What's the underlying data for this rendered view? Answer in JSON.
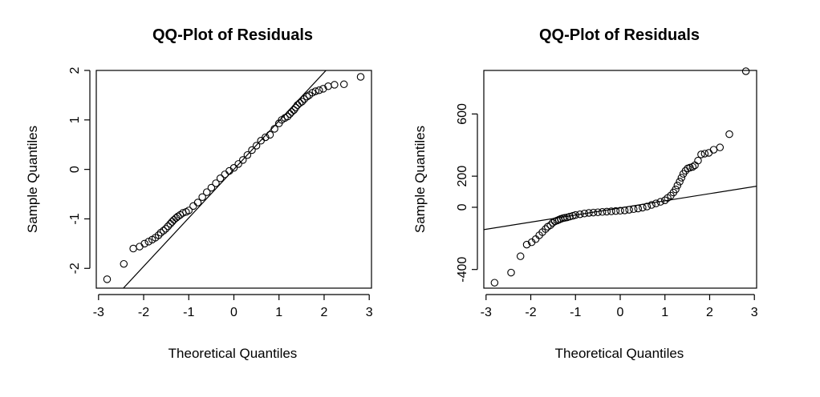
{
  "chart_data": [
    {
      "type": "scatter",
      "title": "QQ-Plot of Residuals",
      "xlabel": "Theoretical Quantiles",
      "ylabel": "Sample Quantiles",
      "xlim": [
        -3.05,
        3.05
      ],
      "ylim": [
        -2.4,
        2.0
      ],
      "xticks": [
        -3,
        -2,
        -1,
        0,
        1,
        2,
        3
      ],
      "yticks": [
        -2,
        -1,
        0,
        1,
        2
      ],
      "reference_line": {
        "intercept": 0.0,
        "slope": 0.98
      },
      "grid": false,
      "series": [
        {
          "x": [
            -2.81,
            -2.44,
            -2.23,
            -2.09,
            -1.98,
            -1.89,
            -1.81,
            -1.74,
            -1.67,
            -1.62,
            -1.56,
            -1.51,
            -1.46,
            -1.41,
            -1.37,
            -1.33,
            -1.28,
            -1.24,
            -1.19,
            -1.13,
            -1.06,
            -1.0,
            -0.9,
            -0.8,
            -0.7,
            -0.6,
            -0.5,
            -0.4,
            -0.3,
            -0.2,
            -0.1,
            0.0,
            0.1,
            0.2,
            0.3,
            0.4,
            0.5,
            0.6,
            0.7,
            0.8,
            0.9,
            1.0,
            1.06,
            1.13,
            1.19,
            1.24,
            1.28,
            1.33,
            1.37,
            1.41,
            1.46,
            1.51,
            1.56,
            1.62,
            1.67,
            1.74,
            1.81,
            1.89,
            1.98,
            2.09,
            2.23,
            2.44,
            2.81
          ],
          "y": [
            -2.22,
            -1.91,
            -1.6,
            -1.56,
            -1.5,
            -1.46,
            -1.42,
            -1.38,
            -1.33,
            -1.28,
            -1.24,
            -1.2,
            -1.15,
            -1.1,
            -1.06,
            -1.02,
            -0.98,
            -0.95,
            -0.92,
            -0.88,
            -0.86,
            -0.83,
            -0.74,
            -0.67,
            -0.56,
            -0.46,
            -0.37,
            -0.28,
            -0.18,
            -0.1,
            -0.03,
            0.03,
            0.11,
            0.19,
            0.29,
            0.39,
            0.48,
            0.58,
            0.65,
            0.7,
            0.82,
            0.93,
            1.0,
            1.04,
            1.07,
            1.12,
            1.16,
            1.2,
            1.25,
            1.3,
            1.34,
            1.37,
            1.42,
            1.47,
            1.5,
            1.55,
            1.58,
            1.6,
            1.63,
            1.68,
            1.71,
            1.72,
            1.87
          ]
        }
      ]
    },
    {
      "type": "scatter",
      "title": "QQ-Plot of Residuals",
      "xlabel": "Theoretical Quantiles",
      "ylabel": "Sample Quantiles",
      "xlim": [
        -3.05,
        3.05
      ],
      "ylim": [
        -520,
        880
      ],
      "xticks": [
        -3,
        -2,
        -1,
        0,
        1,
        2,
        3
      ],
      "yticks": [
        -400,
        0,
        200,
        600
      ],
      "reference_line": {
        "intercept": -4,
        "slope": 45.8
      },
      "grid": false,
      "series": [
        {
          "x": [
            -2.81,
            -2.44,
            -2.23,
            -2.09,
            -1.98,
            -1.89,
            -1.81,
            -1.74,
            -1.67,
            -1.62,
            -1.56,
            -1.51,
            -1.46,
            -1.41,
            -1.37,
            -1.33,
            -1.28,
            -1.24,
            -1.19,
            -1.13,
            -1.06,
            -1.0,
            -0.9,
            -0.8,
            -0.7,
            -0.6,
            -0.5,
            -0.4,
            -0.3,
            -0.2,
            -0.1,
            0.0,
            0.1,
            0.2,
            0.3,
            0.4,
            0.5,
            0.6,
            0.7,
            0.8,
            0.9,
            1.0,
            1.06,
            1.13,
            1.19,
            1.24,
            1.28,
            1.33,
            1.37,
            1.41,
            1.46,
            1.51,
            1.56,
            1.62,
            1.67,
            1.74,
            1.81,
            1.89,
            1.98,
            2.09,
            2.23,
            2.44,
            2.81
          ],
          "y": [
            -485,
            -420,
            -315,
            -240,
            -225,
            -205,
            -180,
            -160,
            -140,
            -125,
            -115,
            -100,
            -90,
            -85,
            -80,
            -75,
            -70,
            -68,
            -65,
            -60,
            -55,
            -50,
            -45,
            -40,
            -36,
            -34,
            -32,
            -30,
            -28,
            -26,
            -24,
            -22,
            -20,
            -16,
            -12,
            -8,
            -2,
            5,
            15,
            25,
            35,
            45,
            60,
            75,
            95,
            115,
            140,
            165,
            190,
            215,
            235,
            250,
            255,
            260,
            270,
            300,
            340,
            345,
            350,
            370,
            385,
            470,
            875
          ]
        }
      ]
    }
  ]
}
